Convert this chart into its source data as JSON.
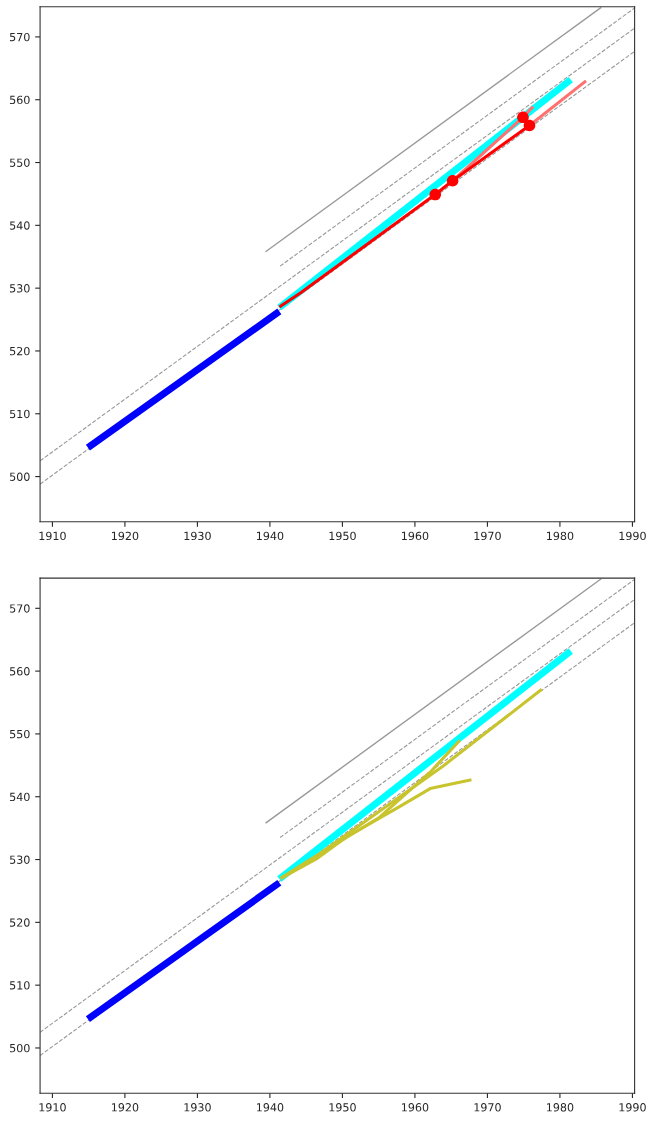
{
  "chart_data": [
    {
      "type": "line",
      "xlim": [
        1908.3,
        1990.3
      ],
      "ylim": [
        492.8,
        574.8
      ],
      "xticks": [
        1910,
        1920,
        1930,
        1940,
        1950,
        1960,
        1970,
        1980,
        1990
      ],
      "yticks": [
        500,
        510,
        520,
        530,
        540,
        550,
        560,
        570
      ],
      "grid": false,
      "series": [
        {
          "type": "line",
          "color": "#999999",
          "line_style": "solid",
          "x": [
            1939.4,
            1985.7
          ],
          "values": [
            535.8,
            574.7
          ]
        },
        {
          "type": "line",
          "color": "#999999",
          "line_style": "dashed",
          "x": [
            1941.4,
            1990.3
          ],
          "values": [
            533.5,
            574.6
          ]
        },
        {
          "type": "line",
          "color": "#999999",
          "line_style": "dashed",
          "x": [
            1908.3,
            1990.3
          ],
          "values": [
            502.5,
            571.4
          ]
        },
        {
          "type": "line",
          "color": "#999999",
          "line_style": "dashed",
          "x": [
            1908.3,
            1990.3
          ],
          "values": [
            498.8,
            567.7
          ]
        },
        {
          "type": "line",
          "color": "#0000ff",
          "line_style": "solid",
          "x": [
            1914.9,
            1941.3
          ],
          "values": [
            504.6,
            526.3
          ]
        },
        {
          "type": "line",
          "color": "#00ffff",
          "line_style": "solid",
          "x": [
            1941.3,
            1981.5
          ],
          "values": [
            526.9,
            563.2
          ]
        },
        {
          "type": "line",
          "color": "#ff7070",
          "line_style": "solid",
          "x": [
            1975.8,
            1983.6
          ],
          "values": [
            555.9,
            563.0
          ]
        },
        {
          "type": "line",
          "color": "#ff7070",
          "line_style": "solid",
          "x": [
            1965.2,
            1974.9,
            1976.3
          ],
          "values": [
            547.1,
            557.2,
            558.9
          ]
        },
        {
          "type": "line",
          "color": "#ff0000",
          "line_style": "solid",
          "x": [
            1941.3,
            1944.3,
            1962.8,
            1965.2,
            1975.8
          ],
          "values": [
            527.0,
            529.3,
            544.9,
            547.1,
            555.9
          ]
        },
        {
          "type": "scatter",
          "color": "#ff0000",
          "marker": "circle",
          "x": [
            1962.8,
            1965.2,
            1974.9,
            1975.8
          ],
          "values": [
            544.9,
            547.1,
            557.2,
            555.9
          ]
        }
      ]
    },
    {
      "type": "line",
      "xlim": [
        1908.3,
        1990.3
      ],
      "ylim": [
        492.8,
        574.8
      ],
      "xticks": [
        1910,
        1920,
        1930,
        1940,
        1950,
        1960,
        1970,
        1980,
        1990
      ],
      "yticks": [
        500,
        510,
        520,
        530,
        540,
        550,
        560,
        570
      ],
      "grid": false,
      "series": [
        {
          "type": "line",
          "color": "#999999",
          "line_style": "solid",
          "x": [
            1939.4,
            1985.7
          ],
          "values": [
            535.8,
            574.7
          ]
        },
        {
          "type": "line",
          "color": "#999999",
          "line_style": "dashed",
          "x": [
            1941.4,
            1990.3
          ],
          "values": [
            533.5,
            574.6
          ]
        },
        {
          "type": "line",
          "color": "#999999",
          "line_style": "dashed",
          "x": [
            1908.3,
            1990.3
          ],
          "values": [
            502.5,
            571.4
          ]
        },
        {
          "type": "line",
          "color": "#999999",
          "line_style": "dashed",
          "x": [
            1908.3,
            1990.3
          ],
          "values": [
            498.8,
            567.7
          ]
        },
        {
          "type": "line",
          "color": "#0000ff",
          "line_style": "solid",
          "x": [
            1914.9,
            1941.3
          ],
          "values": [
            504.6,
            526.3
          ]
        },
        {
          "type": "line",
          "color": "#00ffff",
          "line_style": "solid",
          "x": [
            1941.3,
            1981.5
          ],
          "values": [
            526.9,
            563.2
          ]
        },
        {
          "type": "line",
          "color": "#c8c42e",
          "line_style": "solid",
          "x": [
            1941.5,
            1945.0,
            1955.1,
            1962.1,
            1966.2
          ],
          "values": [
            527.0,
            529.6,
            536.7,
            543.9,
            549.0
          ]
        },
        {
          "type": "line",
          "color": "#c8c42e",
          "line_style": "solid",
          "x": [
            1941.5,
            1945.0,
            1963.9,
            1977.5
          ],
          "values": [
            527.0,
            529.4,
            544.9,
            557.1
          ]
        },
        {
          "type": "line",
          "color": "#c8c42e",
          "line_style": "solid",
          "x": [
            1941.5,
            1946.4,
            1950.7,
            1957.7,
            1962.1,
            1967.8
          ],
          "values": [
            527.0,
            530.1,
            533.7,
            538.3,
            541.3,
            542.7
          ]
        }
      ]
    }
  ]
}
